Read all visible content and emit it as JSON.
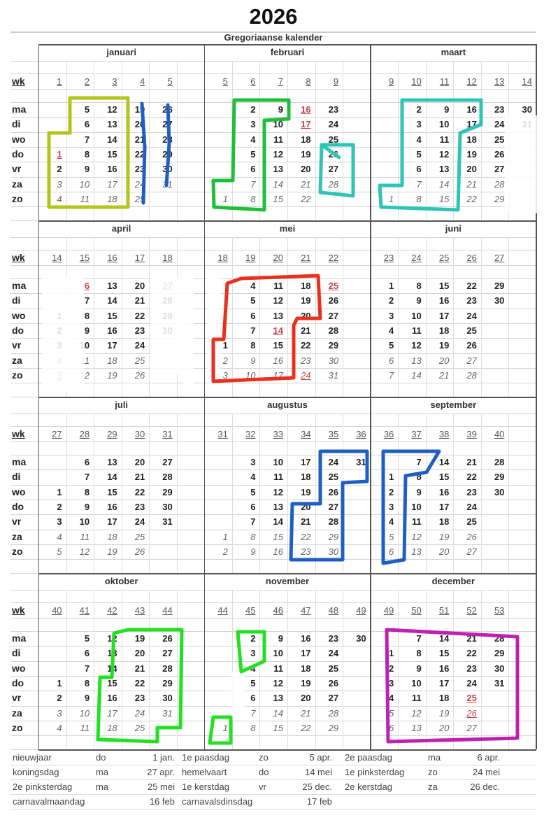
{
  "title": "2026",
  "subtitle": "Gregoriaanse kalender",
  "week_label": "wk",
  "weekdays": [
    "ma",
    "di",
    "wo",
    "do",
    "vr",
    "za",
    "zo"
  ],
  "months": [
    {
      "name": "januari",
      "weeks": [
        "1",
        "2",
        "3",
        "4",
        "5"
      ],
      "holidays": [
        "1"
      ],
      "days": [
        [
          "",
          "5",
          "12",
          "19",
          "26"
        ],
        [
          "",
          "6",
          "13",
          "20",
          "27"
        ],
        [
          "",
          "7",
          "14",
          "21",
          "28"
        ],
        [
          "1",
          "8",
          "15",
          "22",
          "29"
        ],
        [
          "2",
          "9",
          "16",
          "23",
          "30"
        ],
        [
          "3",
          "10",
          "17",
          "24",
          "31"
        ],
        [
          "4",
          "11",
          "18",
          "25",
          ""
        ]
      ]
    },
    {
      "name": "februari",
      "weeks": [
        "5",
        "6",
        "7",
        "8",
        "9"
      ],
      "holidays": [
        "16",
        "17"
      ],
      "days": [
        [
          "",
          "2",
          "9",
          "16",
          "23"
        ],
        [
          "",
          "3",
          "10",
          "17",
          "24"
        ],
        [
          "",
          "4",
          "11",
          "18",
          "25"
        ],
        [
          "",
          "5",
          "12",
          "19",
          "26"
        ],
        [
          "",
          "6",
          "13",
          "20",
          "27"
        ],
        [
          "",
          "7",
          "14",
          "21",
          "28"
        ],
        [
          "1",
          "8",
          "15",
          "22",
          ""
        ]
      ]
    },
    {
      "name": "maart",
      "weeks": [
        "9",
        "10",
        "11",
        "12",
        "13",
        "14"
      ],
      "holidays": [],
      "days": [
        [
          "",
          "2",
          "9",
          "16",
          "23",
          "30"
        ],
        [
          "",
          "3",
          "10",
          "17",
          "24",
          "31"
        ],
        [
          "",
          "4",
          "11",
          "18",
          "25",
          ""
        ],
        [
          "",
          "5",
          "12",
          "19",
          "26",
          ""
        ],
        [
          "",
          "6",
          "13",
          "20",
          "27",
          ""
        ],
        [
          "",
          "7",
          "14",
          "21",
          "28",
          ""
        ],
        [
          "1",
          "8",
          "15",
          "22",
          "29",
          ""
        ]
      ]
    },
    {
      "name": "april",
      "weeks": [
        "14",
        "15",
        "16",
        "17",
        "18"
      ],
      "holidays": [
        "5",
        "6",
        "27"
      ],
      "days": [
        [
          "",
          "6",
          "13",
          "20",
          "27"
        ],
        [
          "",
          "7",
          "14",
          "21",
          "28"
        ],
        [
          "1",
          "8",
          "15",
          "22",
          "29"
        ],
        [
          "2",
          "9",
          "16",
          "23",
          "30"
        ],
        [
          "3",
          "10",
          "17",
          "24",
          ""
        ],
        [
          "4",
          "11",
          "18",
          "25",
          ""
        ],
        [
          "5",
          "12",
          "19",
          "26",
          ""
        ]
      ]
    },
    {
      "name": "mei",
      "weeks": [
        "18",
        "19",
        "20",
        "21",
        "22"
      ],
      "holidays": [
        "14",
        "24",
        "25"
      ],
      "days": [
        [
          "",
          "4",
          "11",
          "18",
          "25"
        ],
        [
          "",
          "5",
          "12",
          "19",
          "26"
        ],
        [
          "",
          "6",
          "13",
          "20",
          "27"
        ],
        [
          "",
          "7",
          "14",
          "21",
          "28"
        ],
        [
          "1",
          "8",
          "15",
          "22",
          "29"
        ],
        [
          "2",
          "9",
          "16",
          "23",
          "30"
        ],
        [
          "3",
          "10",
          "17",
          "24",
          "31"
        ]
      ]
    },
    {
      "name": "juni",
      "weeks": [
        "23",
        "24",
        "25",
        "26",
        "27"
      ],
      "holidays": [],
      "days": [
        [
          "1",
          "8",
          "15",
          "22",
          "29"
        ],
        [
          "2",
          "9",
          "16",
          "23",
          "30"
        ],
        [
          "3",
          "10",
          "17",
          "24",
          ""
        ],
        [
          "4",
          "11",
          "18",
          "25",
          ""
        ],
        [
          "5",
          "12",
          "19",
          "26",
          ""
        ],
        [
          "6",
          "13",
          "20",
          "27",
          ""
        ],
        [
          "7",
          "14",
          "21",
          "28",
          ""
        ]
      ]
    },
    {
      "name": "juli",
      "weeks": [
        "27",
        "28",
        "29",
        "30",
        "31"
      ],
      "holidays": [],
      "days": [
        [
          "",
          "6",
          "13",
          "20",
          "27"
        ],
        [
          "",
          "7",
          "14",
          "21",
          "28"
        ],
        [
          "1",
          "8",
          "15",
          "22",
          "29"
        ],
        [
          "2",
          "9",
          "16",
          "23",
          "30"
        ],
        [
          "3",
          "10",
          "17",
          "24",
          "31"
        ],
        [
          "4",
          "11",
          "18",
          "25",
          ""
        ],
        [
          "5",
          "12",
          "19",
          "26",
          ""
        ]
      ]
    },
    {
      "name": "augustus",
      "weeks": [
        "31",
        "32",
        "33",
        "34",
        "35",
        "36"
      ],
      "holidays": [],
      "days": [
        [
          "",
          "3",
          "10",
          "17",
          "24",
          "31"
        ],
        [
          "",
          "4",
          "11",
          "18",
          "25",
          ""
        ],
        [
          "",
          "5",
          "12",
          "19",
          "26",
          ""
        ],
        [
          "",
          "6",
          "13",
          "20",
          "27",
          ""
        ],
        [
          "",
          "7",
          "14",
          "21",
          "28",
          ""
        ],
        [
          "1",
          "8",
          "15",
          "22",
          "29",
          ""
        ],
        [
          "2",
          "9",
          "16",
          "23",
          "30",
          ""
        ]
      ]
    },
    {
      "name": "september",
      "weeks": [
        "36",
        "37",
        "38",
        "39",
        "40"
      ],
      "holidays": [],
      "days": [
        [
          "",
          "7",
          "14",
          "21",
          "28"
        ],
        [
          "1",
          "8",
          "15",
          "22",
          "29"
        ],
        [
          "2",
          "9",
          "16",
          "23",
          "30"
        ],
        [
          "3",
          "10",
          "17",
          "24",
          ""
        ],
        [
          "4",
          "11",
          "18",
          "25",
          ""
        ],
        [
          "5",
          "12",
          "19",
          "26",
          ""
        ],
        [
          "6",
          "13",
          "20",
          "27",
          ""
        ]
      ]
    },
    {
      "name": "oktober",
      "weeks": [
        "40",
        "41",
        "42",
        "43",
        "44"
      ],
      "holidays": [],
      "days": [
        [
          "",
          "5",
          "12",
          "19",
          "26"
        ],
        [
          "",
          "6",
          "13",
          "20",
          "27"
        ],
        [
          "",
          "7",
          "14",
          "21",
          "28"
        ],
        [
          "1",
          "8",
          "15",
          "22",
          "29"
        ],
        [
          "2",
          "9",
          "16",
          "23",
          "30"
        ],
        [
          "3",
          "10",
          "17",
          "24",
          "31"
        ],
        [
          "4",
          "11",
          "18",
          "25",
          ""
        ]
      ]
    },
    {
      "name": "november",
      "weeks": [
        "44",
        "45",
        "46",
        "47",
        "48",
        "49"
      ],
      "holidays": [],
      "days": [
        [
          "",
          "2",
          "9",
          "16",
          "23",
          "30"
        ],
        [
          "",
          "3",
          "10",
          "17",
          "24",
          ""
        ],
        [
          "",
          "4",
          "11",
          "18",
          "25",
          ""
        ],
        [
          "",
          "5",
          "12",
          "19",
          "26",
          ""
        ],
        [
          "",
          "6",
          "13",
          "20",
          "27",
          ""
        ],
        [
          "",
          "7",
          "14",
          "21",
          "28",
          ""
        ],
        [
          "1",
          "8",
          "15",
          "22",
          "29",
          ""
        ]
      ]
    },
    {
      "name": "december",
      "weeks": [
        "49",
        "50",
        "51",
        "52",
        "53"
      ],
      "holidays": [
        "25",
        "26"
      ],
      "days": [
        [
          "",
          "7",
          "14",
          "21",
          "28"
        ],
        [
          "1",
          "8",
          "15",
          "22",
          "29"
        ],
        [
          "2",
          "9",
          "16",
          "23",
          "30"
        ],
        [
          "3",
          "10",
          "17",
          "24",
          "31"
        ],
        [
          "4",
          "11",
          "18",
          "25",
          ""
        ],
        [
          "5",
          "12",
          "19",
          "26",
          ""
        ],
        [
          "6",
          "13",
          "20",
          "27",
          ""
        ]
      ]
    }
  ],
  "holidays": [
    [
      {
        "name": "nieuwjaar",
        "day": "do",
        "date": "1 jan."
      },
      {
        "name": "1e paasdag",
        "day": "zo",
        "date": "5 apr."
      },
      {
        "name": "2e paasdag",
        "day": "ma",
        "date": "6 apr."
      }
    ],
    [
      {
        "name": "koningsdag",
        "day": "ma",
        "date": "27 apr."
      },
      {
        "name": "hemelvaart",
        "day": "do",
        "date": "14 mei"
      },
      {
        "name": "1e pinksterdag",
        "day": "zo",
        "date": "24 mei"
      }
    ],
    [
      {
        "name": "2e pinksterdag",
        "day": "ma",
        "date": "25 mei"
      },
      {
        "name": "1e kerstdag",
        "day": "vr",
        "date": "25 dec."
      },
      {
        "name": "2e kerstdag",
        "day": "za",
        "date": "26 dec."
      }
    ],
    [
      {
        "name": "carnavalmaandag",
        "day": "",
        "date": "16 feb"
      },
      {
        "name": "carnavalsdinsdag",
        "day": "",
        "date": "17 feb"
      }
    ]
  ],
  "colors": {
    "holiday_text": "#c8424a",
    "marker_yellow_green": "#b5c41a",
    "marker_blue": "#1f5fc4",
    "marker_green": "#1fbf3a",
    "marker_teal": "#2ec4b6",
    "marker_red": "#e8301c",
    "marker_bright_green": "#22e022",
    "marker_magenta": "#c020b0"
  }
}
